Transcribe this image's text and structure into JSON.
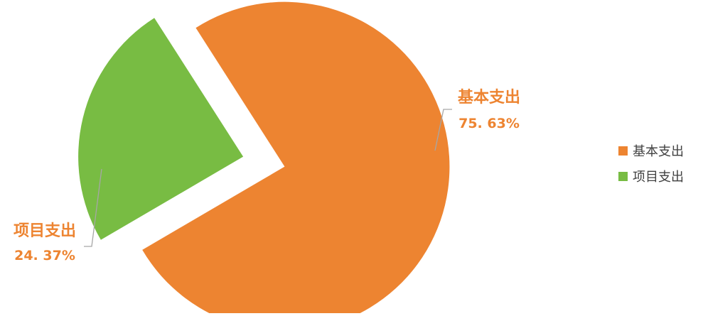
{
  "chart_data": {
    "type": "pie",
    "categories": [
      "基本支出",
      "项目支出"
    ],
    "values": [
      75.63,
      24.37
    ],
    "unit": "%",
    "data_labels": [
      {
        "name": "基本支出",
        "value": "75. 63%"
      },
      {
        "name": "项目支出",
        "value": "24. 37%"
      }
    ],
    "colors": [
      "#ED8431",
      "#78BC43"
    ],
    "legend": {
      "placement": "right",
      "entries": [
        "基本支出",
        "项目支出"
      ]
    },
    "exploded": true,
    "title": ""
  },
  "colors": {
    "label_text": "#ED8431",
    "leader_line": "#A6A6A6",
    "legend_text": "#404040"
  }
}
